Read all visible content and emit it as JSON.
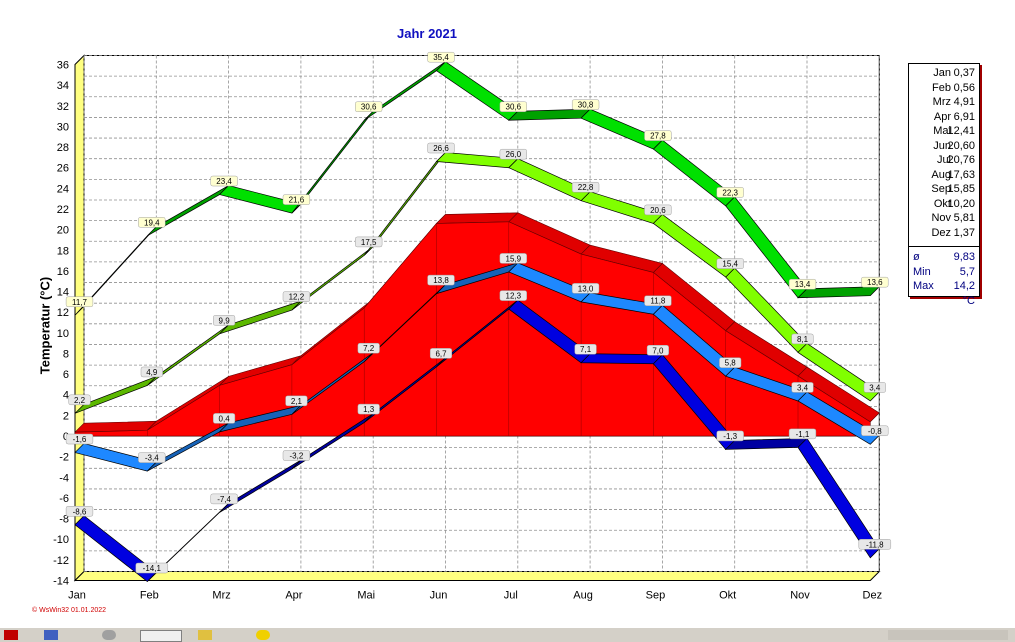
{
  "chart_data": {
    "type": "line",
    "title": "Jahr  2021",
    "ylabel": "Temperatur  (°C)",
    "xlabel": "",
    "categories": [
      "Jan",
      "Feb",
      "Mrz",
      "Apr",
      "Mai",
      "Jun",
      "Jul",
      "Aug",
      "Sep",
      "Okt",
      "Nov",
      "Dez"
    ],
    "ylim": [
      -14,
      36
    ],
    "yticks": [
      36,
      34,
      32,
      30,
      28,
      26,
      24,
      22,
      20,
      18,
      16,
      14,
      12,
      10,
      8,
      6,
      4,
      2,
      0,
      -2,
      -4,
      -6,
      -8,
      -10,
      -12,
      -14
    ],
    "grid": true,
    "series": [
      {
        "key": "abs_max",
        "color": "#00e000",
        "values": [
          11.7,
          19.4,
          23.4,
          21.6,
          30.6,
          35.4,
          30.6,
          30.8,
          27.8,
          22.3,
          13.4,
          13.6
        ],
        "labels": [
          "11,7",
          "19,4",
          "23,4",
          "21,6",
          "30,6",
          "35,4",
          "30,6",
          "30,8",
          "27,8",
          "22,3",
          "13,4",
          "13,6"
        ]
      },
      {
        "key": "mean_max",
        "color": "#80ff00",
        "values": [
          2.2,
          4.9,
          9.9,
          12.2,
          17.5,
          26.6,
          26.0,
          22.8,
          20.6,
          15.4,
          8.1,
          3.4
        ],
        "labels": [
          "2,2",
          "4,9",
          "9,9",
          "12,2",
          "17,5",
          "26,6",
          "26,0",
          "22,8",
          "20,6",
          "15,4",
          "8,1",
          "3,4"
        ]
      },
      {
        "key": "mean",
        "color": "#ff0000",
        "values": [
          0.37,
          0.56,
          4.91,
          6.91,
          12.41,
          20.6,
          20.76,
          17.63,
          15.85,
          10.2,
          5.81,
          1.37
        ],
        "labels": []
      },
      {
        "key": "mean_min",
        "color": "#1e88ff",
        "values": [
          -1.6,
          -3.4,
          0.4,
          2.1,
          7.2,
          13.8,
          15.9,
          13.0,
          11.8,
          5.8,
          3.4,
          -0.8
        ],
        "labels": [
          "-1,6",
          "-3,4",
          "0,4",
          "2,1",
          "7,2",
          "13,8",
          "15,9",
          "13,0",
          "11,8",
          "5,8",
          "3,4",
          "-0,8"
        ]
      },
      {
        "key": "abs_min",
        "color": "#0000e0",
        "values": [
          -8.6,
          -14.1,
          -7.4,
          -3.2,
          1.3,
          6.7,
          12.3,
          7.1,
          7.0,
          -1.3,
          -1.1,
          -11.8
        ],
        "labels": [
          "-8,6",
          "-14,1",
          "-7,4",
          "-3,2",
          "1,3",
          "6,7",
          "12,3",
          "7,1",
          "7,0",
          "-1,3",
          "-1,1",
          "-11,8"
        ]
      }
    ]
  },
  "legend": {
    "months": [
      {
        "m": "Jan",
        "v": "0,37"
      },
      {
        "m": "Feb",
        "v": "0,56"
      },
      {
        "m": "Mrz",
        "v": "4,91"
      },
      {
        "m": "Apr",
        "v": "6,91"
      },
      {
        "m": "Mai",
        "v": "12,41"
      },
      {
        "m": "Jun",
        "v": "20,60"
      },
      {
        "m": "Jul",
        "v": "20,76"
      },
      {
        "m": "Aug",
        "v": "17,63"
      },
      {
        "m": "Sep",
        "v": "15,85"
      },
      {
        "m": "Okt",
        "v": "10,20"
      },
      {
        "m": "Nov",
        "v": "5,81"
      },
      {
        "m": "Dez",
        "v": "1,37"
      }
    ],
    "avg_label": "ø",
    "avg": "9,83",
    "min_label": "Min",
    "min": "5,7",
    "max_label": "Max",
    "max": "14,2",
    "unit": "°C"
  },
  "credit": "© WsWin32  01.01.2022"
}
